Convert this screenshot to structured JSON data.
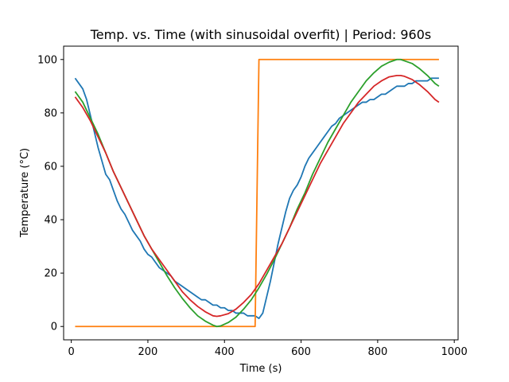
{
  "chart_data": {
    "type": "line",
    "title": "Temp. vs. Time (with sinusoidal overfit) | Period: 960s",
    "xlabel": "Time (s)",
    "ylabel": "Temperature (°C)",
    "xlim": [
      -20,
      1010
    ],
    "ylim": [
      -5,
      105
    ],
    "xticks": [
      0,
      200,
      400,
      600,
      800,
      1000
    ],
    "yticks": [
      0,
      20,
      40,
      60,
      80,
      100
    ],
    "grid": false,
    "colors": {
      "measured": "#1f77b4",
      "setpoint": "#ff7f0e",
      "fit_a": "#2ca02c",
      "fit_b": "#d62728"
    },
    "series": [
      {
        "key": "measured",
        "x": [
          10,
          20,
          30,
          40,
          50,
          60,
          70,
          80,
          90,
          100,
          110,
          120,
          130,
          140,
          150,
          160,
          170,
          180,
          190,
          200,
          210,
          220,
          230,
          240,
          250,
          260,
          270,
          280,
          290,
          300,
          310,
          320,
          330,
          340,
          350,
          360,
          370,
          380,
          390,
          400,
          410,
          420,
          430,
          440,
          450,
          460,
          470,
          480,
          490,
          500,
          510,
          520,
          530,
          540,
          550,
          560,
          570,
          580,
          590,
          600,
          610,
          620,
          630,
          640,
          650,
          660,
          670,
          680,
          690,
          700,
          710,
          720,
          730,
          740,
          750,
          760,
          770,
          780,
          790,
          800,
          810,
          820,
          830,
          840,
          850,
          860,
          870,
          880,
          890,
          900,
          910,
          920,
          930,
          940,
          950,
          960
        ],
        "y": [
          93,
          91,
          89,
          85,
          79,
          73,
          67,
          62,
          57,
          55,
          51,
          47,
          44,
          42,
          39,
          36,
          34,
          32,
          29,
          27,
          26,
          24,
          22,
          21,
          20,
          19,
          17,
          16,
          15,
          14,
          13,
          12,
          11,
          10,
          10,
          9,
          8,
          8,
          7,
          7,
          6,
          6,
          5,
          5,
          5,
          4,
          4,
          4,
          3,
          5,
          11,
          17,
          24,
          31,
          37,
          43,
          48,
          51,
          53,
          56,
          60,
          63,
          65,
          67,
          69,
          71,
          73,
          75,
          76,
          78,
          79,
          80,
          81,
          82,
          83,
          84,
          84,
          85,
          85,
          86,
          87,
          87,
          88,
          89,
          90,
          90,
          90,
          91,
          91,
          92,
          92,
          92,
          92,
          93,
          93,
          93
        ]
      },
      {
        "key": "setpoint",
        "x": [
          10,
          480,
          490,
          960
        ],
        "y": [
          0,
          0,
          100,
          100
        ]
      },
      {
        "key": "fit_a",
        "x": [
          10,
          30,
          50,
          70,
          90,
          110,
          130,
          150,
          170,
          190,
          210,
          230,
          250,
          270,
          290,
          310,
          330,
          350,
          370,
          380,
          390,
          410,
          430,
          450,
          470,
          490,
          510,
          530,
          550,
          570,
          590,
          610,
          630,
          650,
          670,
          690,
          710,
          730,
          750,
          770,
          790,
          810,
          830,
          850,
          860,
          870,
          890,
          910,
          930,
          950,
          960
        ],
        "y": [
          88,
          84,
          78,
          72,
          65,
          58,
          52,
          46,
          40,
          34,
          29,
          24,
          19,
          14.5,
          10.5,
          7,
          4,
          2,
          0.5,
          0,
          0.2,
          1.5,
          3.5,
          6.5,
          10,
          14.5,
          19.5,
          25,
          31,
          37,
          44,
          50,
          57,
          63,
          69,
          74,
          79,
          84,
          88,
          92,
          95,
          97.5,
          99,
          100,
          100,
          99.5,
          98.5,
          96.5,
          94,
          91,
          90
        ]
      },
      {
        "key": "fit_b",
        "x": [
          10,
          30,
          50,
          70,
          90,
          110,
          130,
          150,
          170,
          190,
          210,
          230,
          250,
          270,
          290,
          310,
          330,
          350,
          370,
          380,
          390,
          410,
          430,
          450,
          470,
          490,
          510,
          530,
          550,
          570,
          590,
          610,
          630,
          650,
          670,
          690,
          710,
          730,
          750,
          770,
          790,
          810,
          830,
          850,
          860,
          870,
          890,
          910,
          930,
          950,
          960
        ],
        "y": [
          86,
          82,
          77,
          71,
          65,
          58,
          52,
          46,
          40,
          34,
          29,
          25,
          21,
          17,
          13,
          10,
          7.5,
          5.5,
          4,
          3.8,
          4,
          4.8,
          6.5,
          9,
          12,
          16,
          21,
          26,
          31,
          37,
          43,
          49,
          55,
          61,
          66,
          71,
          76,
          80,
          84,
          87,
          90,
          92,
          93.5,
          94,
          94,
          93.7,
          92.5,
          90.5,
          88,
          85,
          84
        ]
      }
    ]
  }
}
